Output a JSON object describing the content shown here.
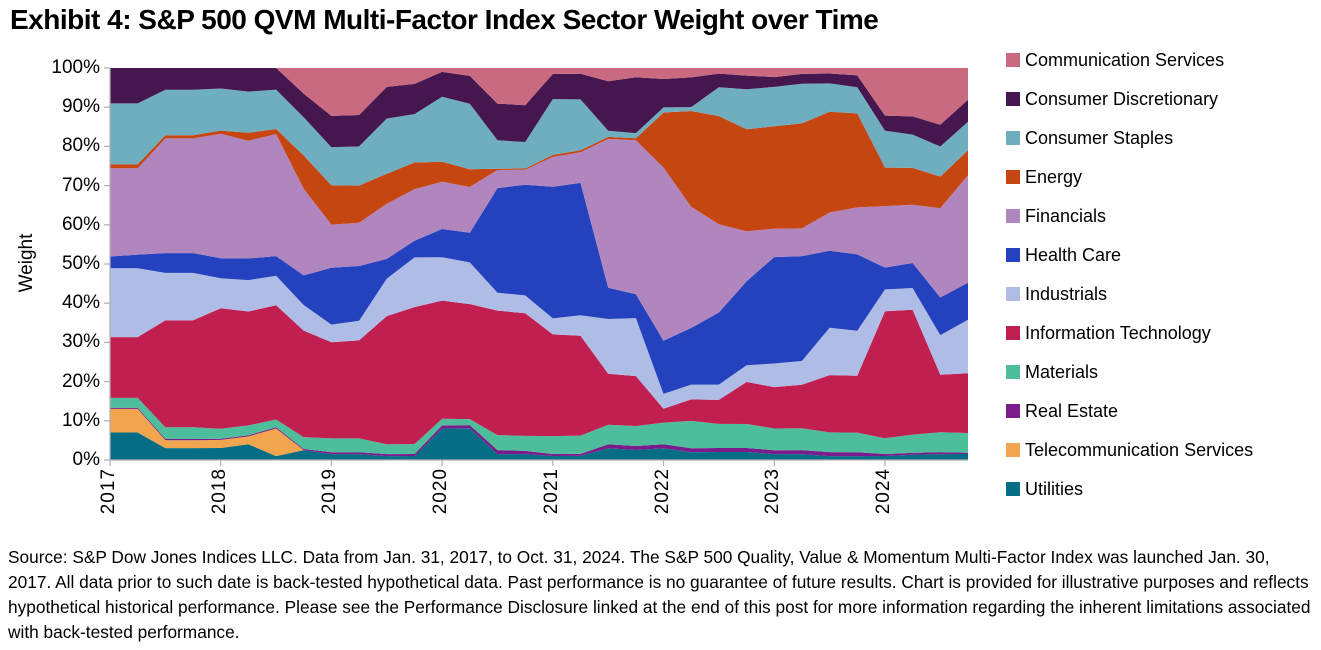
{
  "title": "Exhibit 4: S&P 500 QVM Multi-Factor Index Sector Weight over Time",
  "y_axis": {
    "label": "Weight",
    "tick_labels": [
      "100%",
      "90%",
      "80%",
      "70%",
      "60%",
      "50%",
      "40%",
      "30%",
      "20%",
      "10%",
      "0%"
    ],
    "tick_values": [
      100,
      90,
      80,
      70,
      60,
      50,
      40,
      30,
      20,
      10,
      0
    ]
  },
  "x_axis": {
    "tick_labels": [
      "2017",
      "2018",
      "2019",
      "2020",
      "2021",
      "2022",
      "2023",
      "2024"
    ],
    "tick_values": [
      2017,
      2018,
      2019,
      2020,
      2021,
      2022,
      2023,
      2024
    ]
  },
  "source_text": "Source: S&P Dow Jones Indices LLC. Data from Jan. 31, 2017, to Oct. 31, 2024. The S&P 500 Quality, Value & Momentum Multi-Factor Index was launched Jan. 30, 2017. All data prior to such date is back-tested hypothetical data. Past performance is no guarantee of future results. Chart is provided for illustrative purposes and reflects hypothetical historical performance. Please see the Performance Disclosure linked at the end of this post for more information regarding the inherent limitations associated with back-tested performance.",
  "chart_data": {
    "type": "area",
    "stacked": true,
    "title": "Exhibit 4: S&P 500 QVM Multi-Factor Index Sector Weight over Time",
    "xlabel": "",
    "ylabel": "Weight",
    "ylim": [
      0,
      100
    ],
    "xlim": [
      2017.0,
      2024.75
    ],
    "grid": false,
    "legend_position": "right",
    "x_note": "fractional years, quarterly samples Jan 2017 - Oct 2024; weights in percent, columns normalized to 100",
    "x": [
      2017.0,
      2017.25,
      2017.5,
      2017.75,
      2018.0,
      2018.25,
      2018.5,
      2018.75,
      2019.0,
      2019.25,
      2019.5,
      2019.75,
      2020.0,
      2020.25,
      2020.5,
      2020.75,
      2021.0,
      2021.25,
      2021.5,
      2021.75,
      2022.0,
      2022.25,
      2022.5,
      2022.75,
      2023.0,
      2023.25,
      2023.5,
      2023.75,
      2024.0,
      2024.25,
      2024.5,
      2024.75
    ],
    "stack_order_bottom_to_top": [
      "Utilities",
      "Telecommunication Services",
      "Real Estate",
      "Materials",
      "Information Technology",
      "Industrials",
      "Health Care",
      "Financials",
      "Energy",
      "Consumer Staples",
      "Consumer Discretionary",
      "Communication Services"
    ],
    "series": [
      {
        "name": "Communication Services",
        "color": "#C96A80",
        "values": [
          0,
          0,
          0,
          0,
          0,
          0,
          0,
          6.5,
          12.2,
          12,
          4.8,
          4,
          1,
          2,
          9,
          9.4,
          1.5,
          1.4,
          3.4,
          2.3,
          2.8,
          2.4,
          1.4,
          1.9,
          2.3,
          1.5,
          1.4,
          1.9,
          12,
          12.2,
          14.3,
          8
        ]
      },
      {
        "name": "Consumer Discretionary",
        "color": "#45174E",
        "values": [
          9,
          9,
          5.5,
          5.5,
          5.1,
          6,
          5.5,
          6,
          8,
          8,
          8,
          7.6,
          6.3,
          7,
          9.3,
          9.3,
          6.3,
          6.3,
          12.6,
          14,
          7.2,
          7.6,
          3.4,
          3.4,
          2.5,
          2.5,
          2.5,
          3,
          3.8,
          4.6,
          5.5,
          5.5
        ]
      },
      {
        "name": "Consumer Staples",
        "color": "#6FAEBE",
        "values": [
          15.5,
          15.5,
          11.5,
          11.5,
          10.5,
          10.5,
          10,
          9.7,
          9.7,
          10,
          14,
          12.2,
          16.5,
          16.5,
          7.2,
          6.7,
          14,
          12.5,
          1.6,
          1.3,
          1.3,
          1,
          7.2,
          10,
          10,
          10,
          7.2,
          6.7,
          9.3,
          8.4,
          7.6,
          7.2
        ]
      },
      {
        "name": "Energy",
        "color": "#C64612",
        "values": [
          1,
          1,
          0.8,
          0.8,
          0.8,
          2,
          1.3,
          8.4,
          10,
          9.5,
          7.6,
          6.7,
          5.1,
          4.5,
          0.3,
          0.3,
          0.5,
          0.5,
          0.5,
          0.5,
          14,
          24.5,
          27,
          25.5,
          26,
          26.5,
          25.5,
          24,
          9.7,
          9.3,
          8,
          6.3
        ]
      },
      {
        "name": "Financials",
        "color": "#B186BF",
        "values": [
          22.5,
          22,
          29,
          29,
          31,
          30,
          31,
          22,
          11,
          11,
          14,
          13,
          12,
          11.5,
          4.6,
          3.8,
          7.5,
          7.5,
          38,
          38.5,
          44,
          31,
          22,
          12.5,
          7.2,
          7,
          9.7,
          12,
          15.5,
          14.7,
          22.5,
          27
        ]
      },
      {
        "name": "Health Care",
        "color": "#2442BD",
        "values": [
          3,
          3.5,
          5,
          5,
          5,
          5.5,
          5,
          7.5,
          14.5,
          14,
          5,
          4.2,
          7.2,
          7.5,
          26.5,
          28,
          33,
          32.5,
          8,
          6,
          13.5,
          14.5,
          18,
          21,
          27,
          26.5,
          19.5,
          19.5,
          5.5,
          6.3,
          9.5,
          9.3
        ]
      },
      {
        "name": "Industrials",
        "color": "#AEBCE6",
        "values": [
          17.5,
          17.5,
          12,
          12,
          7.5,
          8,
          7.5,
          6.5,
          4.5,
          5,
          9.5,
          12.5,
          11,
          10.5,
          4.5,
          4.5,
          4,
          5,
          14,
          14.5,
          3.8,
          3.8,
          3.8,
          4.2,
          6,
          6,
          12,
          11.5,
          5.5,
          5.5,
          10,
          13.5
        ]
      },
      {
        "name": "Information Technology",
        "color": "#C01F4F",
        "values": [
          15.5,
          15.5,
          27,
          27,
          30,
          29,
          29,
          27,
          24.5,
          25,
          32.5,
          34.5,
          30,
          29,
          31.5,
          31,
          25.5,
          24.5,
          13,
          12.5,
          3.5,
          5.5,
          6,
          10.5,
          10.5,
          11,
          14.5,
          14.5,
          32,
          31.5,
          14.5,
          15
        ]
      },
      {
        "name": "Materials",
        "color": "#4EBD9B",
        "values": [
          2.5,
          2.5,
          3,
          3,
          2.5,
          2.5,
          2,
          3,
          3.5,
          3.5,
          2.5,
          2.5,
          1.7,
          1.5,
          3.8,
          3.8,
          4.5,
          4.5,
          5,
          5,
          5.5,
          7,
          6,
          6,
          5.5,
          5.5,
          5,
          5,
          4,
          4.6,
          5,
          5
        ]
      },
      {
        "name": "Real Estate",
        "color": "#7A1C8C",
        "values": [
          0.3,
          0.3,
          0.3,
          0.3,
          0.3,
          0.3,
          0.3,
          0.3,
          0.5,
          0.5,
          0.5,
          0.5,
          0.8,
          0.8,
          1,
          0.8,
          0.5,
          0.5,
          1,
          1,
          1,
          1,
          1,
          1,
          1,
          1,
          1,
          1,
          0.5,
          0.5,
          0.5,
          0.3
        ]
      },
      {
        "name": "Telecommunication Services",
        "color": "#F0A54E",
        "values": [
          6,
          6,
          2,
          2,
          2,
          2,
          7,
          0,
          0,
          0,
          0,
          0,
          0,
          0,
          0,
          0,
          0,
          0,
          0,
          0,
          0,
          0,
          0,
          0,
          0,
          0,
          0,
          0,
          0,
          0,
          0,
          0
        ]
      },
      {
        "name": "Utilities",
        "color": "#056E86",
        "values": [
          7,
          7,
          3,
          3,
          3,
          4,
          1,
          2.5,
          1.5,
          1.5,
          1,
          1,
          8,
          8,
          1.5,
          1.5,
          1,
          1,
          3,
          2.5,
          3,
          2,
          2,
          2,
          1.5,
          1.5,
          1,
          1,
          1,
          1.3,
          1.5,
          1.5
        ]
      }
    ]
  }
}
